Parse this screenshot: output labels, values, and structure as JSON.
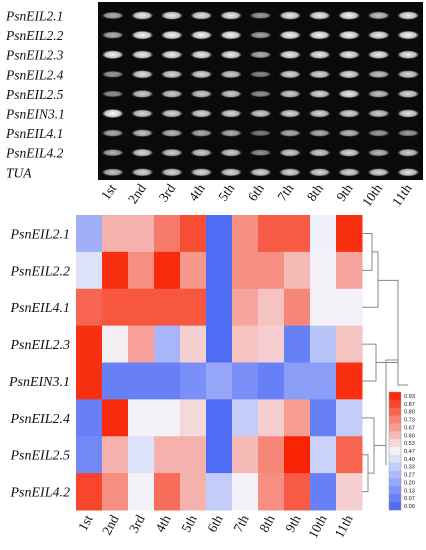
{
  "gel_panel": {
    "row_labels": [
      "PsnEIL2.1",
      "PsnEIL2.2",
      "PsnEIL2.3",
      "PsnEIL2.4",
      "PsnEIL2.5",
      "PsnEIN3.1",
      "PsnEIL4.1",
      "PsnEIL4.2",
      "TUA"
    ],
    "column_labels": [
      "1st",
      "2nd",
      "3rd",
      "4th",
      "5th",
      "6th",
      "7th",
      "8th",
      "9th",
      "10th",
      "11th"
    ],
    "band_intensity": [
      [
        0.55,
        0.85,
        0.85,
        0.8,
        0.85,
        0.45,
        0.85,
        0.85,
        0.9,
        0.65,
        0.85
      ],
      [
        0.55,
        0.9,
        0.9,
        0.9,
        0.9,
        0.5,
        0.9,
        0.9,
        0.9,
        0.85,
        0.9
      ],
      [
        0.9,
        0.85,
        0.85,
        0.85,
        0.85,
        0.55,
        0.85,
        0.85,
        0.85,
        0.85,
        0.85
      ],
      [
        0.45,
        0.8,
        0.75,
        0.75,
        0.7,
        0.35,
        0.75,
        0.75,
        0.8,
        0.65,
        0.75
      ],
      [
        0.4,
        0.7,
        0.7,
        0.7,
        0.7,
        0.4,
        0.7,
        0.75,
        0.85,
        0.65,
        0.75
      ],
      [
        1.0,
        0.75,
        0.75,
        0.75,
        0.75,
        0.7,
        0.75,
        0.75,
        0.75,
        0.7,
        0.8
      ],
      [
        0.55,
        0.65,
        0.6,
        0.55,
        0.55,
        0.3,
        0.55,
        0.55,
        0.6,
        0.45,
        0.45
      ],
      [
        0.55,
        0.75,
        0.7,
        0.7,
        0.7,
        0.4,
        0.7,
        0.7,
        0.75,
        0.6,
        0.7
      ],
      [
        0.65,
        0.75,
        0.75,
        0.75,
        0.75,
        0.75,
        0.75,
        0.75,
        0.75,
        0.75,
        0.8
      ]
    ]
  },
  "chart_data": {
    "type": "heatmap",
    "rows": [
      "PsnEIL2.1",
      "PsnEIL2.2",
      "PsnEIL4.1",
      "PsnEIL2.3",
      "PsnEIN3.1",
      "PsnEIL2.4",
      "PsnEIL2.5",
      "PsnEIL4.2"
    ],
    "columns": [
      "1st",
      "2nd",
      "3rd",
      "4th",
      "5th",
      "6th",
      "7th",
      "8th",
      "9th",
      "10th",
      "11th"
    ],
    "values": [
      [
        0.23,
        0.62,
        0.62,
        0.75,
        0.85,
        0.0,
        0.7,
        0.82,
        0.82,
        0.45,
        0.92
      ],
      [
        0.4,
        0.92,
        0.7,
        0.93,
        0.68,
        0.0,
        0.7,
        0.7,
        0.6,
        0.47,
        0.65
      ],
      [
        0.8,
        0.83,
        0.83,
        0.83,
        0.83,
        0.0,
        0.65,
        0.58,
        0.72,
        0.47,
        0.47
      ],
      [
        0.92,
        0.48,
        0.66,
        0.25,
        0.55,
        0.0,
        0.58,
        0.55,
        0.07,
        0.3,
        0.58
      ],
      [
        0.92,
        0.07,
        0.07,
        0.07,
        0.12,
        0.2,
        0.12,
        0.07,
        0.17,
        0.17,
        0.92
      ],
      [
        0.07,
        0.93,
        0.47,
        0.47,
        0.53,
        0.0,
        0.33,
        0.55,
        0.67,
        0.07,
        0.33
      ],
      [
        0.1,
        0.62,
        0.4,
        0.62,
        0.62,
        0.0,
        0.6,
        0.72,
        0.95,
        0.35,
        0.8
      ],
      [
        0.87,
        0.7,
        0.47,
        0.78,
        0.62,
        0.33,
        0.47,
        0.7,
        0.82,
        0.07,
        0.55
      ]
    ],
    "scale": {
      "min": 0.0,
      "max": 0.93,
      "tick_labels": [
        "0.93",
        "0.87",
        "0.80",
        "0.73",
        "0.67",
        "0.60",
        "0.53",
        "0.47",
        "0.40",
        "0.33",
        "0.27",
        "0.20",
        "0.13",
        "0.07",
        "0.00"
      ],
      "colors": {
        "low": "#4f6cf5",
        "mid": "#f4f4fb",
        "high": "#f82c0c"
      }
    },
    "legend_position": "right"
  }
}
